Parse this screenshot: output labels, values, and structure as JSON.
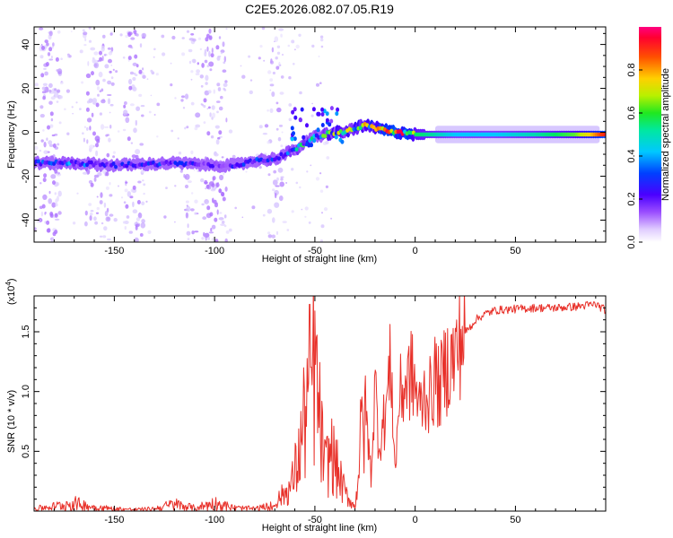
{
  "title": "C2E5.2026.082.07.05.R19",
  "colors": {
    "snr_line": "#e8312a",
    "colormap": [
      "#ffffff",
      "#d8c8ff",
      "#9a4dff",
      "#4a00ff",
      "#0030ff",
      "#00c8ff",
      "#00e860",
      "#b8f000",
      "#ffd000",
      "#ff4000",
      "#ff0040"
    ]
  },
  "chart_data": [
    {
      "type": "heatmap",
      "name": "spectrogram",
      "xlabel": "Height of straight line (km)",
      "ylabel": "Frequency (Hz)",
      "xlim": [
        -190,
        95
      ],
      "ylim": [
        -50,
        48
      ],
      "xticks": [
        -150,
        -100,
        -50,
        0,
        50
      ],
      "yticks": [
        -40,
        -20,
        0,
        20,
        40
      ],
      "colorbar": {
        "label": "Normalized spectral amplitude",
        "range": [
          0.0,
          1.0
        ],
        "ticks": [
          "0.0",
          "0.2",
          "0.4",
          "0.6",
          "0.8"
        ],
        "tick_values": [
          0.0,
          0.2,
          0.4,
          0.6,
          0.8
        ]
      },
      "ridge": {
        "x": [
          -190,
          -170,
          -150,
          -120,
          -100,
          -90,
          -80,
          -70,
          -60,
          -55,
          -50,
          -45,
          -40,
          -35,
          -30,
          -25,
          -20,
          -15,
          -10,
          -5,
          0,
          20,
          40,
          60,
          80,
          95
        ],
        "y": [
          -14,
          -14,
          -15,
          -14,
          -15,
          -15,
          -13,
          -12,
          -8,
          -5,
          -2,
          -1,
          0,
          0,
          2,
          3,
          2,
          1,
          0,
          0,
          -1,
          -1,
          -1,
          -1,
          -1,
          -1
        ],
        "amplitude": [
          0.35,
          0.4,
          0.3,
          0.35,
          0.28,
          0.3,
          0.35,
          0.4,
          0.45,
          0.5,
          0.45,
          0.55,
          0.6,
          0.6,
          0.65,
          0.7,
          0.8,
          0.85,
          0.9,
          0.85,
          0.6,
          0.5,
          0.5,
          0.55,
          0.65,
          0.95
        ]
      }
    },
    {
      "type": "line",
      "name": "snr",
      "xlabel": "Height of straight line (km)",
      "ylabel": "SNR (10 * v/v)",
      "scale_label": "(x10",
      "scale_exp": "4",
      "xlim": [
        -190,
        95
      ],
      "ylim": [
        0,
        18000
      ],
      "xticks": [
        -150,
        -100,
        -50,
        0,
        50
      ],
      "yticks": [
        5000,
        10000,
        15000
      ],
      "ytick_labels": [
        "0.5",
        "1.0",
        "1.5"
      ],
      "series": [
        {
          "name": "SNR",
          "x": [
            -190,
            -180,
            -170,
            -160,
            -150,
            -140,
            -130,
            -120,
            -110,
            -100,
            -90,
            -80,
            -70,
            -62,
            -58,
            -55,
            -52,
            -50,
            -48,
            -45,
            -42,
            -38,
            -35,
            -32,
            -30,
            -27,
            -25,
            -22,
            -20,
            -18,
            -15,
            -12,
            -10,
            -8,
            -5,
            -2,
            0,
            2,
            5,
            8,
            10,
            12,
            15,
            18,
            20,
            22,
            25,
            28,
            30,
            35,
            40,
            50,
            60,
            70,
            80,
            90,
            95
          ],
          "y": [
            300,
            600,
            1000,
            500,
            300,
            200,
            300,
            900,
            400,
            1000,
            400,
            300,
            700,
            2000,
            4500,
            8000,
            11000,
            12000,
            8000,
            3500,
            5000,
            3000,
            1500,
            800,
            300,
            6000,
            9000,
            3000,
            10500,
            5500,
            8000,
            12500,
            3000,
            9500,
            10500,
            11500,
            10500,
            8500,
            10000,
            9500,
            11500,
            10000,
            12000,
            12500,
            13000,
            14000,
            15000,
            15500,
            16000,
            16500,
            16800,
            16900,
            17000,
            17000,
            17100,
            17300,
            16800
          ]
        }
      ]
    }
  ]
}
